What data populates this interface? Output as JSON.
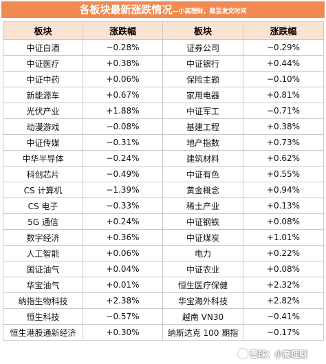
{
  "title": {
    "main": "各板块最新涨跌情况",
    "sub": "—小高理财，截至发文时间"
  },
  "headers": [
    "板块",
    "涨跌幅",
    "板块",
    "涨跌幅"
  ],
  "rows": [
    {
      "left": {
        "name": "中证白酒",
        "change": "−0.28%",
        "dir": "neg"
      },
      "right": {
        "name": "证券公司",
        "change": "−0.29%",
        "dir": "neg"
      }
    },
    {
      "left": {
        "name": "中证医疗",
        "change": "+0.38%",
        "dir": "pos"
      },
      "right": {
        "name": "中证银行",
        "change": "+0.44%",
        "dir": "pos"
      }
    },
    {
      "left": {
        "name": "中证中药",
        "change": "+0.06%",
        "dir": "pos"
      },
      "right": {
        "name": "保险主题",
        "change": "−0.10%",
        "dir": "neg"
      }
    },
    {
      "left": {
        "name": "新能源车",
        "change": "+0.67%",
        "dir": "pos"
      },
      "right": {
        "name": "家用电器",
        "change": "+0.81%",
        "dir": "pos"
      }
    },
    {
      "left": {
        "name": "光伏产业",
        "change": "+1.88%",
        "dir": "pos"
      },
      "right": {
        "name": "中证军工",
        "change": "−0.71%",
        "dir": "neg"
      }
    },
    {
      "left": {
        "name": "动漫游戏",
        "change": "−0.08%",
        "dir": "neg"
      },
      "right": {
        "name": "基建工程",
        "change": "+0.38%",
        "dir": "pos"
      }
    },
    {
      "left": {
        "name": "中证传媒",
        "change": "−0.31%",
        "dir": "neg"
      },
      "right": {
        "name": "地产指数",
        "change": "+0.73%",
        "dir": "pos"
      }
    },
    {
      "left": {
        "name": "中华半导体",
        "change": "−0.24%",
        "dir": "neg"
      },
      "right": {
        "name": "建筑材料",
        "change": "+0.62%",
        "dir": "pos"
      }
    },
    {
      "left": {
        "name": "科创芯片",
        "change": "−0.49%",
        "dir": "neg"
      },
      "right": {
        "name": "中证有色",
        "change": "+0.55%",
        "dir": "pos"
      }
    },
    {
      "left": {
        "name": "CS 计算机",
        "change": "−1.39%",
        "dir": "neg"
      },
      "right": {
        "name": "黄金概念",
        "change": "+0.94%",
        "dir": "pos"
      }
    },
    {
      "left": {
        "name": "CS 电子",
        "change": "−0.33%",
        "dir": "neg"
      },
      "right": {
        "name": "稀土产业",
        "change": "+0.13%",
        "dir": "pos"
      }
    },
    {
      "left": {
        "name": "5G 通信",
        "change": "+0.24%",
        "dir": "pos"
      },
      "right": {
        "name": "中证钢铁",
        "change": "+0.08%",
        "dir": "pos"
      }
    },
    {
      "left": {
        "name": "数字经济",
        "change": "+0.36%",
        "dir": "pos"
      },
      "right": {
        "name": "中证煤炭",
        "change": "+1.01%",
        "dir": "pos"
      }
    },
    {
      "left": {
        "name": "人工智能",
        "change": "+0.06%",
        "dir": "pos"
      },
      "right": {
        "name": "电力",
        "change": "+0.22%",
        "dir": "pos"
      }
    },
    {
      "left": {
        "name": "国证油气",
        "change": "+0.04%",
        "dir": "pos"
      },
      "right": {
        "name": "中证农业",
        "change": "+0.08%",
        "dir": "pos"
      }
    },
    {
      "left": {
        "name": "华宝油气",
        "change": "+0.01%",
        "dir": "pos"
      },
      "right": {
        "name": "恒生医疗保健",
        "change": "+2.32%",
        "dir": "pos"
      }
    },
    {
      "left": {
        "name": "纳指生物科技",
        "change": "+2.38%",
        "dir": "pos"
      },
      "right": {
        "name": "华宝海外科技",
        "change": "+2.82%",
        "dir": "pos"
      }
    },
    {
      "left": {
        "name": "恒生科技",
        "change": "−0.57%",
        "dir": "neg"
      },
      "right": {
        "name": "越南 VN30",
        "change": "−0.41%",
        "dir": "neg"
      }
    },
    {
      "left": {
        "name": "恒生港股通新经济",
        "change": "+0.30%",
        "dir": "pos"
      },
      "right": {
        "name": "纳斯达克 100 期指",
        "change": "−0.17%",
        "dir": "neg"
      }
    }
  ],
  "watermark": {
    "text": "雪球：小高理财",
    "icon": "snowball-logo-icon"
  }
}
